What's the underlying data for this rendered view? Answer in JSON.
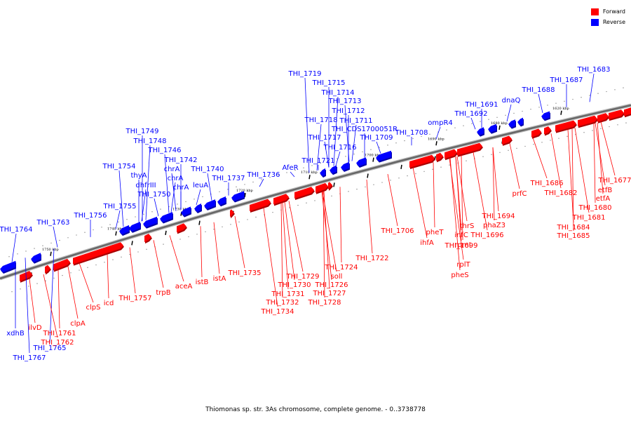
{
  "legend": {
    "forward_label": "Forward",
    "reverse_label": "Reverse",
    "forward_color": "#ff0000",
    "reverse_color": "#0000ff"
  },
  "caption": "Thiomonas sp. str. 3As chromosome, complete genome. - 0..3738778",
  "scale_labels": [
    "1620 kbp",
    "1680 kbp",
    "1690 kbp",
    "1700 kbp",
    "1710 kbp",
    "1720 kbp",
    "1730 kbp",
    "1740 kbp",
    "1750 kbp"
  ],
  "reverse_labels": [
    "THI_1683",
    "THI_1687",
    "THI_1688",
    "dnaQ",
    "THI_1691",
    "THI_1692",
    "ompR4",
    "THI_1708",
    "THI_1709",
    "THI_1711",
    "THI_1712",
    "THI_1713",
    "THI_1714",
    "THI_1715",
    "THI_1719",
    "THI_1718",
    "THI_CDS1700051R",
    "THI_1717",
    "THI_1716",
    "THI_1721",
    "AfeR",
    "THI_1736",
    "THI_1737",
    "THI_1740",
    "leuA",
    "THI_1742",
    "chrA",
    "chrA",
    "chrA",
    "THI_1746",
    "THI_1748",
    "THI_1749",
    "THI_1750",
    "dhfrIII",
    "thyA",
    "THI_1754",
    "THI_1755",
    "THI_1756",
    "THI_1763",
    "THI_1764",
    "xdhB",
    "THI_1765",
    "THI_1767"
  ],
  "forward_labels": [
    "THI_1677",
    "etfB",
    "etfA",
    "THI_1680",
    "THI_1681",
    "THI_1682",
    "THI_1684",
    "THI_1685",
    "THI_1686",
    "prfC",
    "THI_1694",
    "phaZ3",
    "THI_1696",
    "thrS",
    "infC",
    "rpmI",
    "rplT",
    "pheS",
    "THI_1699",
    "pheT",
    "ihfA",
    "THI_1706",
    "THI_1722",
    "THI_1724",
    "soll",
    "THI_1726",
    "THI_1727",
    "THI_1728",
    "THI_1729",
    "THI_1730",
    "THI_1731",
    "THI_1732",
    "THI_1734",
    "THI_1735",
    "istA",
    "istB",
    "aceA",
    "trpB",
    "THI_1757",
    "icd",
    "clpS",
    "clpA",
    "ilvD",
    "THI_1761",
    "THI_1762"
  ]
}
